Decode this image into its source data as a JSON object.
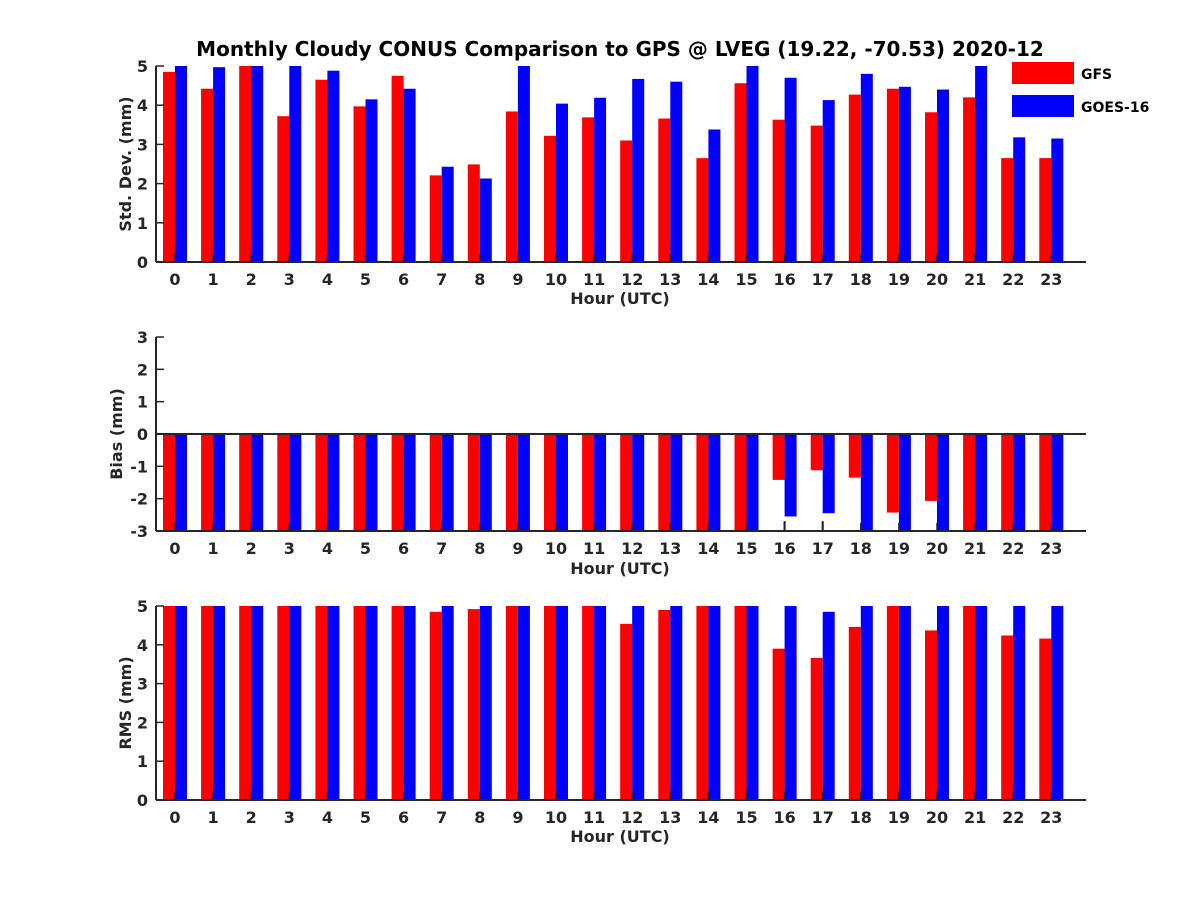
{
  "chart_data": {
    "title": "Monthly Cloudy CONUS Comparison to GPS @ LVEG (19.22, -70.53) 2020-12",
    "type": "bar",
    "legend": {
      "placement": "top-right",
      "entries": [
        {
          "name": "GFS",
          "color": "#ff0000"
        },
        {
          "name": "GOES-16",
          "color": "#0000ff"
        }
      ]
    },
    "categories": [
      "0",
      "1",
      "2",
      "3",
      "4",
      "5",
      "6",
      "7",
      "8",
      "9",
      "10",
      "11",
      "12",
      "13",
      "14",
      "15",
      "16",
      "17",
      "18",
      "19",
      "20",
      "21",
      "22",
      "23"
    ],
    "panels": [
      {
        "ylabel": "Std. Dev. (mm)",
        "xlabel": "Hour (UTC)",
        "ylim": [
          0,
          5
        ],
        "yticks": [
          "0",
          "1",
          "2",
          "3",
          "4",
          "5"
        ],
        "series": [
          {
            "name": "GFS",
            "color": "#ff0000",
            "values": [
              4.85,
              4.42,
              5,
              3.72,
              4.65,
              3.97,
              4.75,
              2.21,
              2.49,
              3.84,
              3.22,
              3.69,
              3.1,
              3.66,
              2.65,
              4.56,
              3.63,
              3.48,
              4.27,
              4.42,
              3.82,
              4.2,
              2.65,
              2.65
            ]
          },
          {
            "name": "GOES-16",
            "color": "#0000ff",
            "values": [
              5,
              4.97,
              5,
              5,
              4.88,
              4.15,
              4.42,
              2.43,
              2.13,
              5,
              4.04,
              4.19,
              4.67,
              4.6,
              3.38,
              5,
              4.7,
              4.13,
              4.8,
              4.47,
              4.4,
              5,
              3.18,
              3.15
            ]
          }
        ],
        "errorbars": []
      },
      {
        "ylabel": "Bias (mm)",
        "xlabel": "Hour (UTC)",
        "ylim": [
          -3,
          3
        ],
        "yticks": [
          "-3",
          "-2",
          "-1",
          "0",
          "1",
          "2",
          "3"
        ],
        "series": [
          {
            "name": "GFS",
            "color": "#ff0000",
            "values": [
              -3,
              -3,
              -3,
              -3,
              -3,
              -3,
              -3,
              -3,
              -3,
              -3,
              -3,
              -3,
              -3,
              -3,
              -3,
              -3,
              -1.42,
              -1.12,
              -1.35,
              -2.43,
              -2.07,
              -3,
              -3,
              -3
            ]
          },
          {
            "name": "GOES-16",
            "color": "#0000ff",
            "values": [
              -3,
              -3,
              -3,
              -3,
              -3,
              -3,
              -3,
              -3,
              -3,
              -3,
              -3,
              -3,
              -3,
              -3,
              -3,
              -3,
              -2.55,
              -2.45,
              -3,
              -3,
              -3,
              -3,
              -3,
              -3
            ]
          }
        ],
        "errorbars": [
          {
            "category": "16",
            "y": [
              -3,
              -2.7
            ]
          },
          {
            "category": "17",
            "y": [
              -3,
              -2.7
            ]
          }
        ]
      },
      {
        "ylabel": "RMS (mm)",
        "xlabel": "Hour (UTC)",
        "ylim": [
          0,
          5
        ],
        "yticks": [
          "0",
          "1",
          "2",
          "3",
          "4",
          "5"
        ],
        "series": [
          {
            "name": "GFS",
            "color": "#ff0000",
            "values": [
              5,
              5,
              5,
              5,
              5,
              5,
              5,
              4.85,
              4.92,
              5,
              5,
              5,
              4.54,
              4.9,
              5,
              5,
              3.9,
              3.66,
              4.46,
              5,
              4.37,
              5,
              4.24,
              4.16
            ]
          },
          {
            "name": "GOES-16",
            "color": "#0000ff",
            "values": [
              5,
              5,
              5,
              5,
              5,
              5,
              5,
              5,
              5,
              5,
              5,
              5,
              5,
              5,
              5,
              5,
              5,
              4.85,
              5,
              5,
              5,
              5,
              5,
              5
            ]
          }
        ],
        "errorbars": []
      }
    ]
  }
}
